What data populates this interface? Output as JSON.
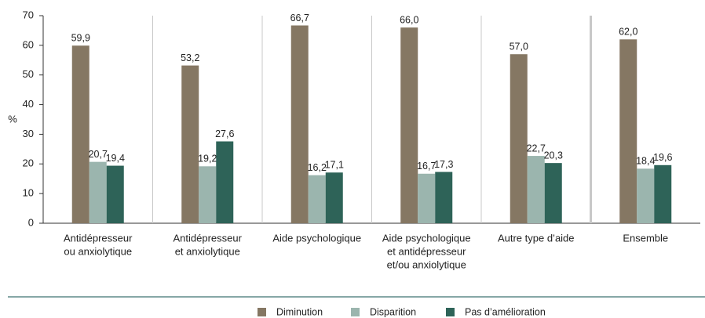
{
  "chart_data": {
    "type": "bar",
    "y_label": "%",
    "categories": [
      [
        "Antidépresseur",
        "ou anxiolytique"
      ],
      [
        "Antidépresseur",
        "et anxiolytique"
      ],
      [
        "Aide psychologique"
      ],
      [
        "Aide psychologique",
        "et antidépresseur",
        "et/ou anxiolytique"
      ],
      [
        "Autre type d’aide"
      ],
      [
        "Ensemble"
      ]
    ],
    "series": [
      {
        "name": "Diminution",
        "color": "#857763",
        "values": [
          59.9,
          53.2,
          66.7,
          66.0,
          57.0,
          62.0
        ],
        "value_labels": [
          "59,9",
          "53,2",
          "66,7",
          "66,0",
          "57,0",
          "62,0"
        ]
      },
      {
        "name": "Disparition",
        "color": "#9bb5ae",
        "values": [
          20.7,
          19.2,
          16.2,
          16.7,
          22.7,
          18.4
        ],
        "value_labels": [
          "20,7",
          "19,2",
          "16,2",
          "16,7",
          "22,7",
          "18,4"
        ]
      },
      {
        "name": "Pas d’amélioration",
        "color": "#2e6358",
        "values": [
          19.4,
          27.6,
          17.1,
          17.3,
          20.3,
          19.6
        ],
        "value_labels": [
          "19,4",
          "27,6",
          "17,1",
          "17,3",
          "20,3",
          "19,6"
        ]
      }
    ],
    "ylim": [
      0,
      70
    ],
    "yticks": [
      0,
      10,
      20,
      30,
      40,
      50,
      60,
      70
    ],
    "grid": false,
    "legend": "bottom"
  }
}
